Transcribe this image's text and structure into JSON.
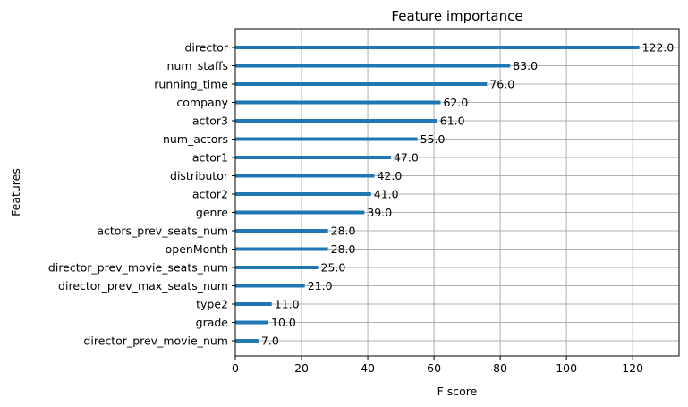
{
  "chart_data": {
    "type": "bar",
    "orientation": "horizontal",
    "title": "Feature importance",
    "xlabel": "F score",
    "ylabel": "Features",
    "categories": [
      "director",
      "num_staffs",
      "running_time",
      "company",
      "actor3",
      "num_actors",
      "actor1",
      "distributor",
      "actor2",
      "genre",
      "actors_prev_seats_num",
      "openMonth",
      "director_prev_movie_seats_num",
      "director_prev_max_seats_num",
      "type2",
      "grade",
      "director_prev_movie_num"
    ],
    "values": [
      122.0,
      83.0,
      76.0,
      62.0,
      61.0,
      55.0,
      47.0,
      42.0,
      41.0,
      39.0,
      28.0,
      28.0,
      25.0,
      21.0,
      11.0,
      10.0,
      7.0
    ],
    "data_labels": [
      "122.0",
      "83.0",
      "76.0",
      "62.0",
      "61.0",
      "55.0",
      "47.0",
      "42.0",
      "41.0",
      "39.0",
      "28.0",
      "28.0",
      "25.0",
      "21.0",
      "11.0",
      "10.0",
      "7.0"
    ],
    "xlim": [
      0,
      134
    ],
    "xticks": [
      0,
      20,
      40,
      60,
      80,
      100,
      120
    ],
    "xtick_labels": [
      "0",
      "20",
      "40",
      "60",
      "80",
      "100",
      "120"
    ],
    "grid": true,
    "bar_color": "#1f77b4",
    "grid_color": "#b0b0b0",
    "legend": "none"
  }
}
